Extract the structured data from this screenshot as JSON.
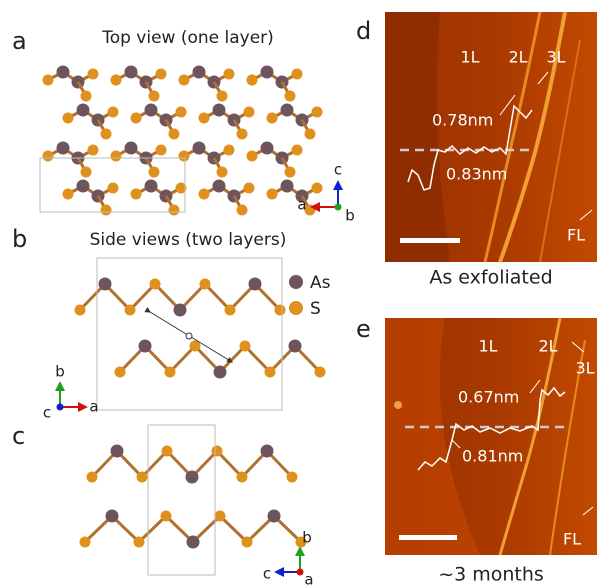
{
  "panels": {
    "a": {
      "label": "a",
      "title": "Top view (one layer)",
      "axes": [
        "c",
        "a",
        "b"
      ]
    },
    "b": {
      "label": "b",
      "title": "Side views (two layers)",
      "legend": [
        "As",
        "S"
      ],
      "axes": [
        "b",
        "c",
        "a"
      ]
    },
    "c": {
      "label": "c",
      "axes": [
        "b",
        "c",
        "a"
      ]
    },
    "d": {
      "label": "d",
      "regions": [
        "1L",
        "2L",
        "3L",
        "FL"
      ],
      "heights": [
        "0.78nm",
        "0.83nm"
      ],
      "caption": "As exfoliated"
    },
    "e": {
      "label": "e",
      "regions": [
        "1L",
        "2L",
        "3L",
        "FL"
      ],
      "heights": [
        "0.67nm",
        "0.81nm"
      ],
      "caption": "~3 months"
    }
  }
}
